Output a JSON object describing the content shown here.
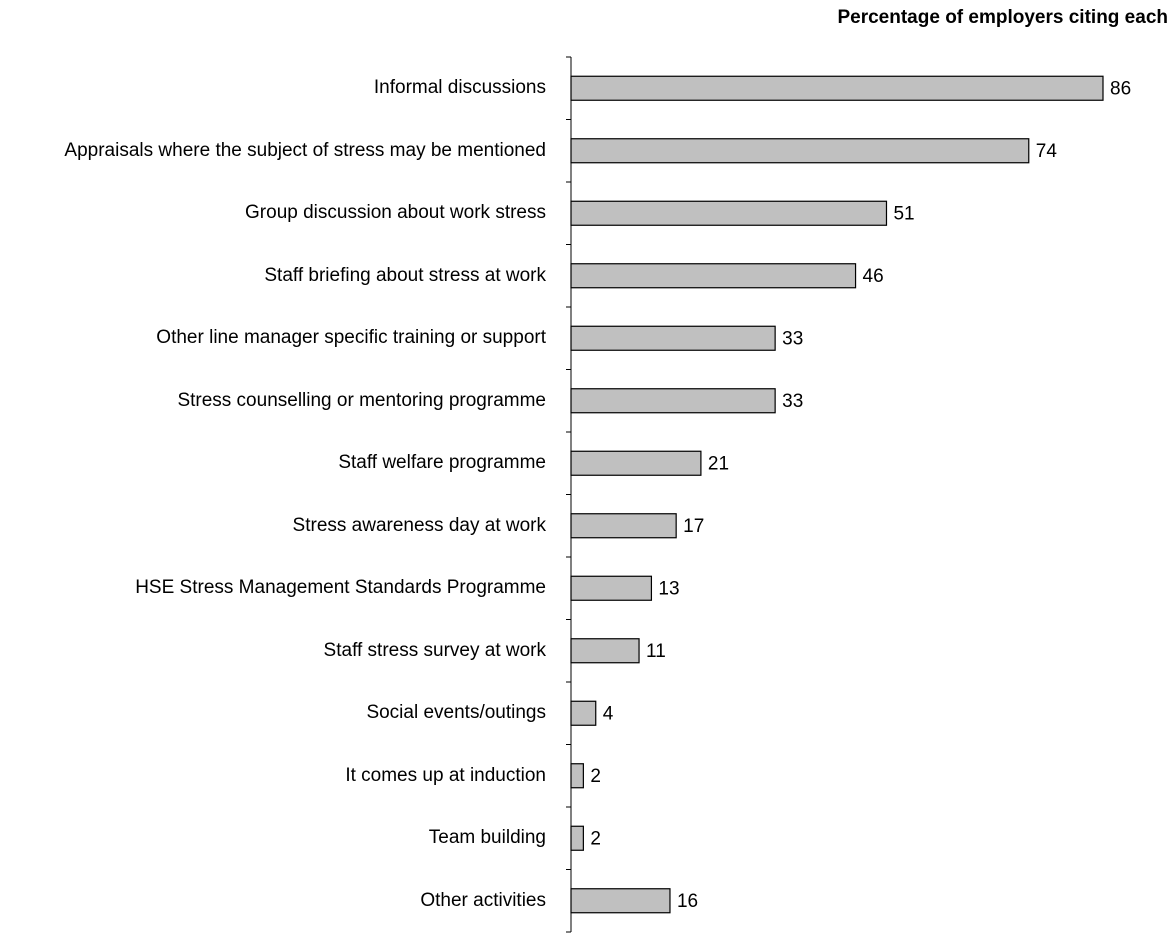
{
  "chart_data": {
    "type": "bar",
    "orientation": "horizontal",
    "title": "Percentage of employers citing each",
    "categories": [
      "Informal discussions",
      "Appraisals where the subject of stress may be mentioned",
      "Group discussion about work stress",
      "Staff briefing about stress at work",
      "Other line manager specific training or support",
      "Stress counselling or mentoring programme",
      "Staff welfare programme",
      "Stress awareness day at work",
      "HSE Stress Management Standards Programme",
      "Staff stress survey at work",
      "Social events/outings",
      "It comes up at induction",
      "Team building",
      "Other activities"
    ],
    "values": [
      86,
      74,
      51,
      46,
      33,
      33,
      21,
      17,
      13,
      11,
      4,
      2,
      2,
      16
    ],
    "color": "#c0c0c0"
  }
}
